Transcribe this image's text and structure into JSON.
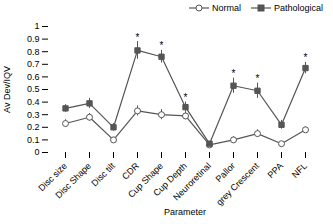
{
  "chart_data": {
    "type": "line",
    "xlabel": "Parameter",
    "ylabel": "Av Dev/IQV",
    "categories": [
      "Disc size",
      "Disc Shape",
      "Disc tilt",
      "CDR",
      "Cup Shape",
      "Cup Depth",
      "Neuroretinal",
      "Pallor",
      "grey Crescent",
      "PPA",
      "NFL"
    ],
    "series": [
      {
        "name": "Normal",
        "color": "#555555",
        "marker": "open-circle",
        "values": [
          0.23,
          0.28,
          0.1,
          0.33,
          0.3,
          0.29,
          0.06,
          0.1,
          0.15,
          0.07,
          0.18
        ],
        "errors": [
          0.03,
          0.03,
          0.02,
          0.04,
          0.04,
          0.03,
          0.015,
          0.025,
          0.03,
          0.015,
          0.025
        ]
      },
      {
        "name": "Pathological",
        "color": "#555555",
        "marker": "filled-square",
        "values": [
          0.35,
          0.39,
          0.2,
          0.81,
          0.76,
          0.36,
          0.07,
          0.53,
          0.49,
          0.22,
          0.67
        ],
        "errors": [
          0.03,
          0.04,
          0.03,
          0.07,
          0.05,
          0.04,
          0.015,
          0.06,
          0.06,
          0.035,
          0.045
        ]
      }
    ],
    "annotations": [
      {
        "text": "*",
        "series": "Pathological",
        "x": "CDR"
      },
      {
        "text": "*",
        "series": "Pathological",
        "x": "Cup Shape"
      },
      {
        "text": "*",
        "series": "Pathological",
        "x": "Cup Depth"
      },
      {
        "text": "*",
        "series": "Pathological",
        "x": "Pallor"
      },
      {
        "text": "*",
        "series": "Pathological",
        "x": "grey Crescent"
      },
      {
        "text": "*",
        "series": "Pathological",
        "x": "NFL"
      }
    ],
    "ylim": [
      0,
      1.0
    ],
    "yticks": [
      0,
      0.1,
      0.2,
      0.3,
      0.4,
      0.5,
      0.6,
      0.7,
      0.8,
      0.9,
      1
    ],
    "legend": "upper right"
  }
}
